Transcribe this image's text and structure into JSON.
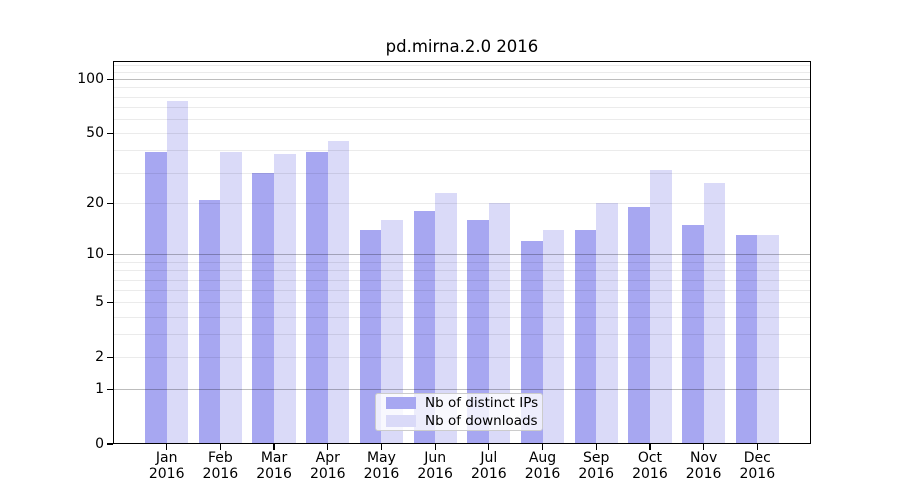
{
  "chart_data": {
    "type": "bar",
    "title": "pd.mirna.2.0 2016",
    "year_label": "2016",
    "categories": [
      "Jan",
      "Feb",
      "Mar",
      "Apr",
      "May",
      "Jun",
      "Jul",
      "Aug",
      "Sep",
      "Oct",
      "Nov",
      "Dec"
    ],
    "series": [
      {
        "name": "Nb of distinct IPs",
        "color": "#a7a7f1",
        "values": [
          39,
          21,
          30,
          39,
          14,
          18,
          16,
          12,
          14,
          19,
          15,
          13
        ]
      },
      {
        "name": "Nb of downloads",
        "color": "#dadaf8",
        "values": [
          76,
          39,
          38,
          45,
          16,
          23,
          20,
          14,
          20,
          31,
          26,
          13
        ]
      }
    ],
    "yscale": "log10(1+v)",
    "ylim": [
      0,
      126
    ],
    "ytick_values": [
      100,
      50,
      20,
      10,
      5,
      2,
      1,
      0
    ],
    "ytick_labels": [
      "100",
      "50",
      "20",
      "10",
      "5",
      "2",
      "1",
      "0"
    ],
    "major_grid_values": [
      1,
      10,
      100
    ],
    "minor_grid_values": [
      2,
      3,
      4,
      5,
      6,
      7,
      8,
      9,
      20,
      30,
      40,
      50,
      60,
      70,
      80,
      90,
      110,
      120
    ],
    "grid": true,
    "legend_position": "lower center",
    "xlabel": "",
    "ylabel": ""
  }
}
